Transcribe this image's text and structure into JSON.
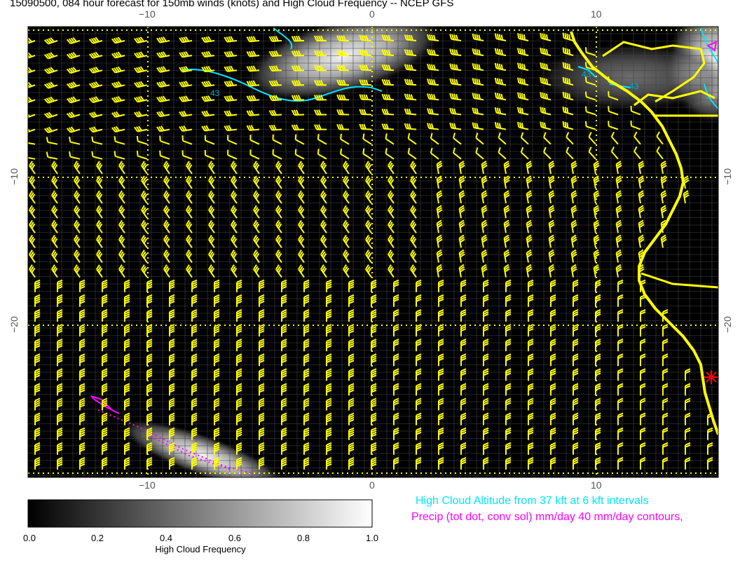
{
  "title": "15090500, 084 hour forecast for 150mb winds (knots) and High Cloud Frequency -- NCEP GFS",
  "axes": {
    "lon_ticks": [
      "−10",
      "0",
      "10"
    ],
    "lat_ticks": [
      "−10",
      "−20"
    ]
  },
  "colorbar": {
    "label": "High Cloud Frequency",
    "ticks": [
      "0.0",
      "0.2",
      "0.4",
      "0.6",
      "0.8",
      "1.0"
    ],
    "colors": [
      "#000000",
      "#ffffff"
    ]
  },
  "legend": {
    "cloud_altitude": "High Cloud Altitude from 37 kft at 6 kft intervals",
    "precip": "Precip (tot dot, conv sol) mm/day 40 mm/day contours,"
  },
  "contour_labels": [
    "43",
    "43",
    "43"
  ],
  "colors": {
    "barbs": "#ffff00",
    "coast": "#ffff00",
    "altitude_contours": "#00e5ff",
    "precip_contours": "#ff00ff",
    "marker": "#ff0000"
  }
}
